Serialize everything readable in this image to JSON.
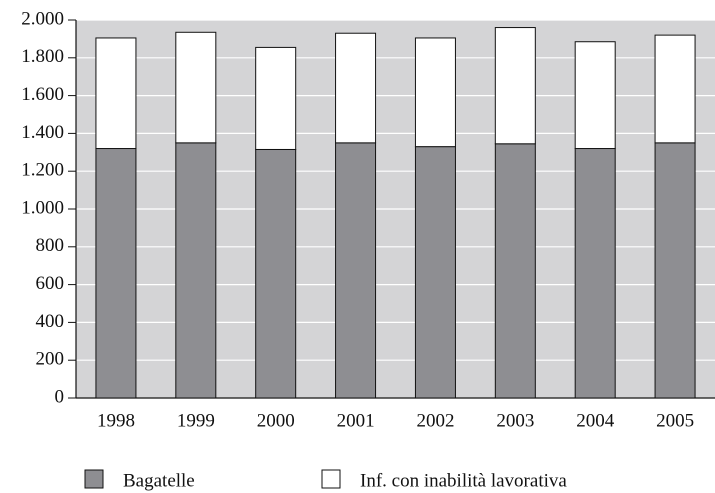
{
  "chart_data": {
    "type": "stacked_bar",
    "categories": [
      "1998",
      "1999",
      "2000",
      "2001",
      "2002",
      "2003",
      "2004",
      "2005"
    ],
    "series": [
      {
        "name": "Bagatelle",
        "color": "#8e8e92",
        "values": [
          1320,
          1350,
          1315,
          1350,
          1330,
          1345,
          1320,
          1350
        ]
      },
      {
        "name": "Inf. con inabilità lavorativa",
        "color": "#ffffff",
        "values": [
          585,
          585,
          540,
          580,
          575,
          615,
          565,
          570
        ]
      }
    ],
    "ylim": [
      0,
      2000
    ],
    "yticks": [
      0,
      200,
      400,
      600,
      800,
      {
        "value": 1000,
        "label": "1.000"
      },
      {
        "value": 1200,
        "label": "1.200"
      },
      {
        "value": 1400,
        "label": "1.400"
      },
      {
        "value": 1600,
        "label": "1.600"
      },
      {
        "value": 1800,
        "label": "1.800"
      },
      {
        "value": 2000,
        "label": "2.000"
      }
    ],
    "grid": true
  }
}
